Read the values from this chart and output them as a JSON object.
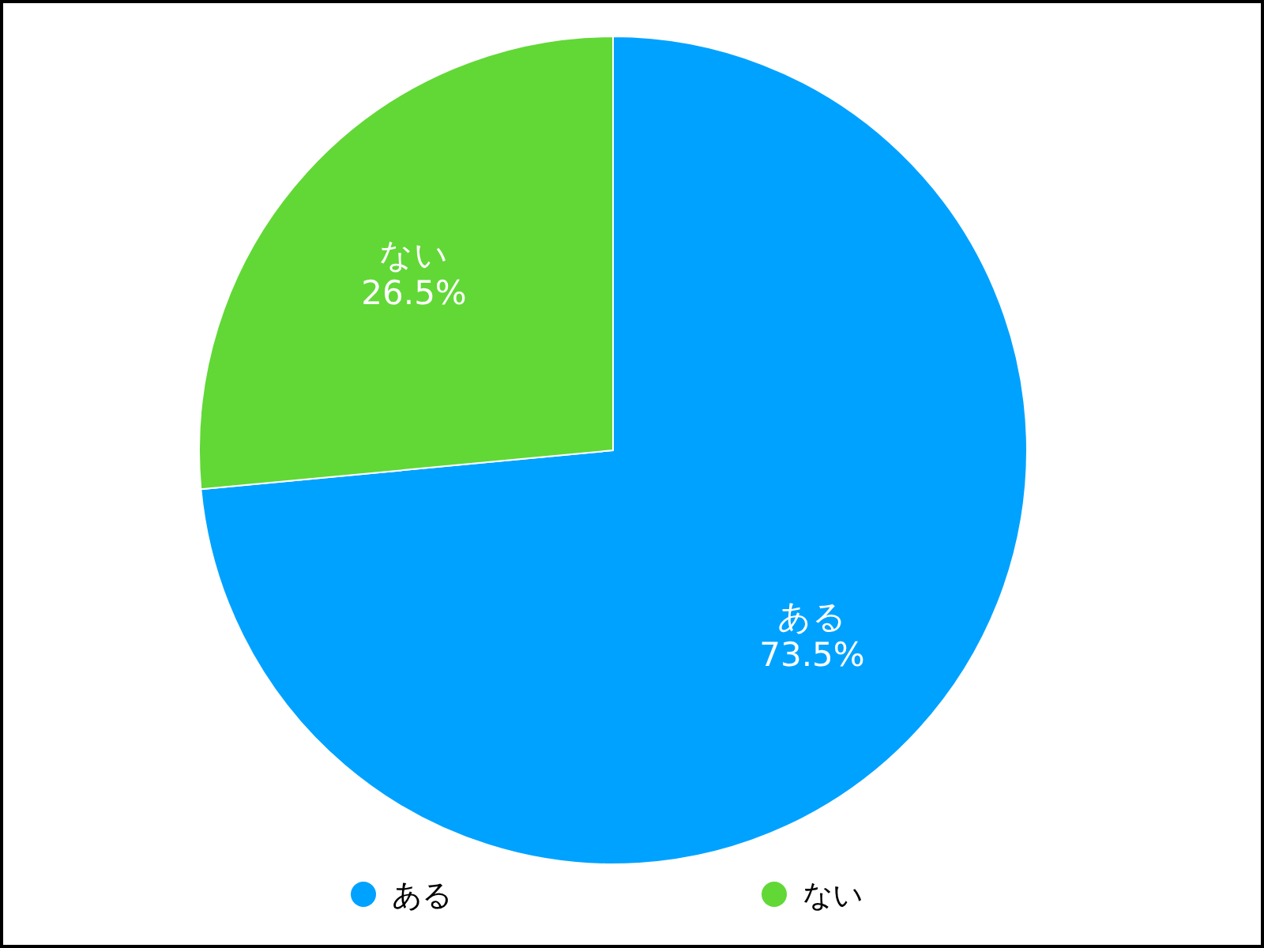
{
  "chart_data": {
    "type": "pie",
    "categories": [
      "ある",
      "ない"
    ],
    "values": [
      73.5,
      26.5
    ],
    "colors": [
      "#00a2ff",
      "#61d836"
    ],
    "value_labels": [
      "73.5%",
      "26.5%"
    ],
    "legend": "bottom"
  }
}
